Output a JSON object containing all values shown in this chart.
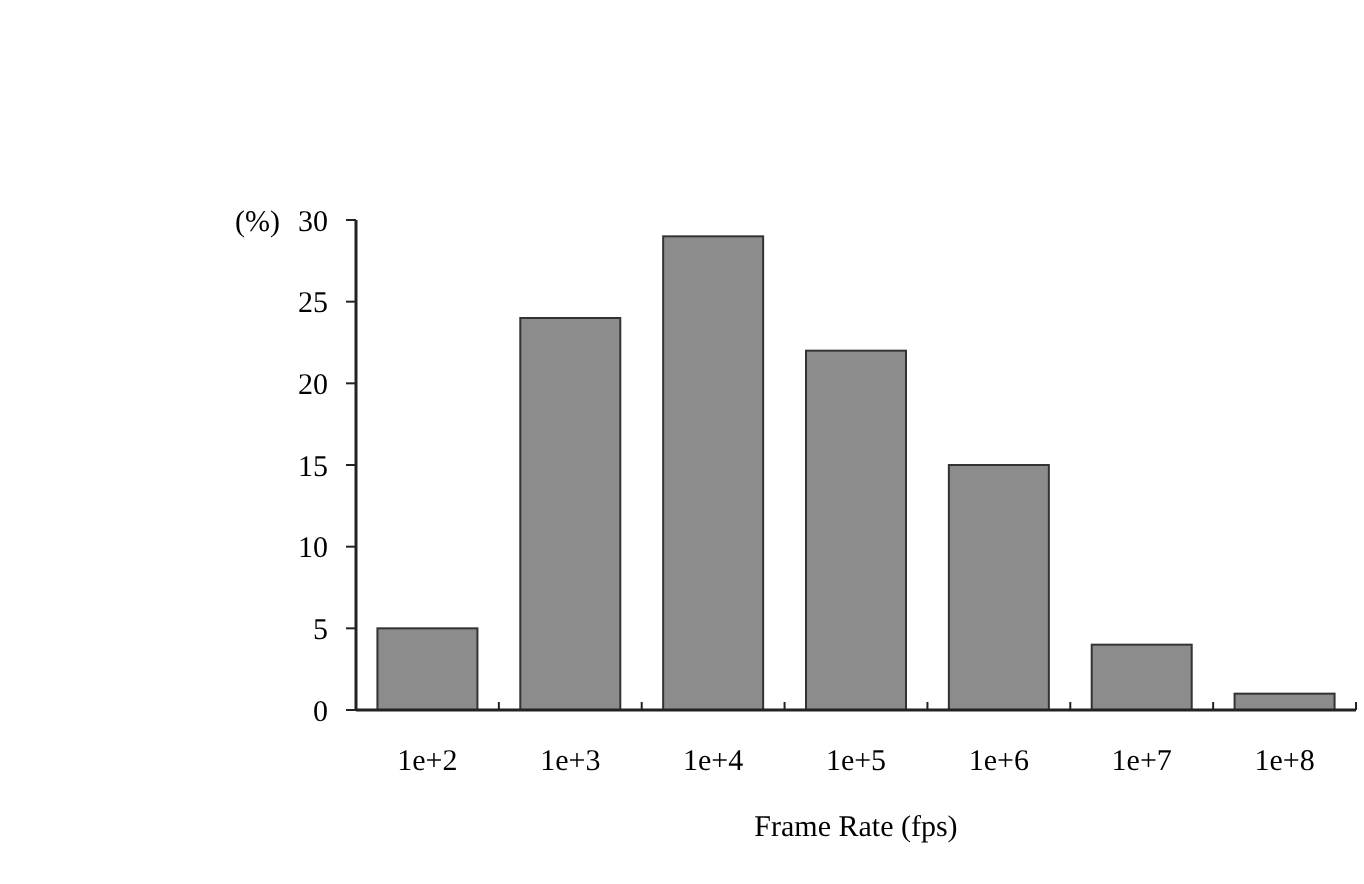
{
  "chart_data": {
    "type": "bar",
    "xlabel": "Frame Rate (fps)",
    "ylabel": "(%)",
    "categories": [
      "1e+2",
      "1e+3",
      "1e+4",
      "1e+5",
      "1e+6",
      "1e+7",
      "1e+8"
    ],
    "values": [
      5,
      24,
      29,
      22,
      15,
      4,
      1
    ],
    "color": "#8c8c8c",
    "ylim": [
      0,
      30
    ],
    "yticks": [
      0,
      5,
      10,
      15,
      20,
      25,
      30
    ],
    "grid": false
  }
}
